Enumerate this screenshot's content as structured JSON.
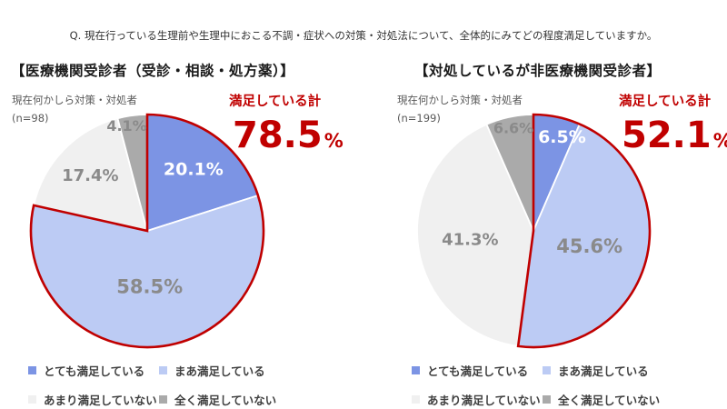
{
  "question": "Q. 現在行っている生理前や生理中におこる不調・症状への対策・対処法について、全体的にみてどの程度満足していますか。",
  "colors": {
    "very_satisfied": "#7C94E4",
    "somewhat_satisfied": "#BCCBF4",
    "not_very_satisfied": "#F0F0F0",
    "not_at_all_satisfied": "#AAAAAA",
    "accent_red": "#C00000",
    "slice_label_gray": "#8A8A8A",
    "legend_text": "#404040"
  },
  "legend_items": [
    {
      "key": "very_satisfied",
      "label": "とても満足している"
    },
    {
      "key": "somewhat_satisfied",
      "label": "まあ満足している"
    },
    {
      "key": "not_very_satisfied",
      "label": "あまり満足していない"
    },
    {
      "key": "not_at_all_satisfied",
      "label": "全く満足していない"
    }
  ],
  "chart_data": [
    {
      "type": "pie",
      "title": "【医療機関受診者（受診・相談・処方薬）】",
      "population_label": "現在何かしら対策・対処者",
      "n_label": "(n=98)",
      "satisfied_total_label": "満足している計",
      "satisfied_total_value": "78.5",
      "satisfied_total_unit": "%",
      "categories": [
        "とても満足している",
        "まあ満足している",
        "あまり満足していない",
        "全く満足していない"
      ],
      "values": [
        20.1,
        58.5,
        17.4,
        4.1
      ],
      "value_labels": [
        "20.1%",
        "58.5%",
        "17.4%",
        "4.1%"
      ],
      "start_angle_deg": 0,
      "direction": "clockwise",
      "legend_position": "bottom",
      "highlight_note": "satisfied slices (first two) outlined in dark red"
    },
    {
      "type": "pie",
      "title": "【対処しているが非医療機関受診者】",
      "population_label": "現在何かしら対策・対処者",
      "n_label": "(n=199)",
      "satisfied_total_label": "満足している計",
      "satisfied_total_value": "52.1",
      "satisfied_total_unit": "%",
      "categories": [
        "とても満足している",
        "まあ満足している",
        "あまり満足していない",
        "全く満足していない"
      ],
      "values": [
        6.5,
        45.6,
        41.3,
        6.6
      ],
      "value_labels": [
        "6.5%",
        "45.6%",
        "41.3%",
        "6.6%"
      ],
      "start_angle_deg": 0,
      "direction": "clockwise",
      "legend_position": "bottom",
      "highlight_note": "satisfied slices (first two) outlined in dark red"
    }
  ]
}
